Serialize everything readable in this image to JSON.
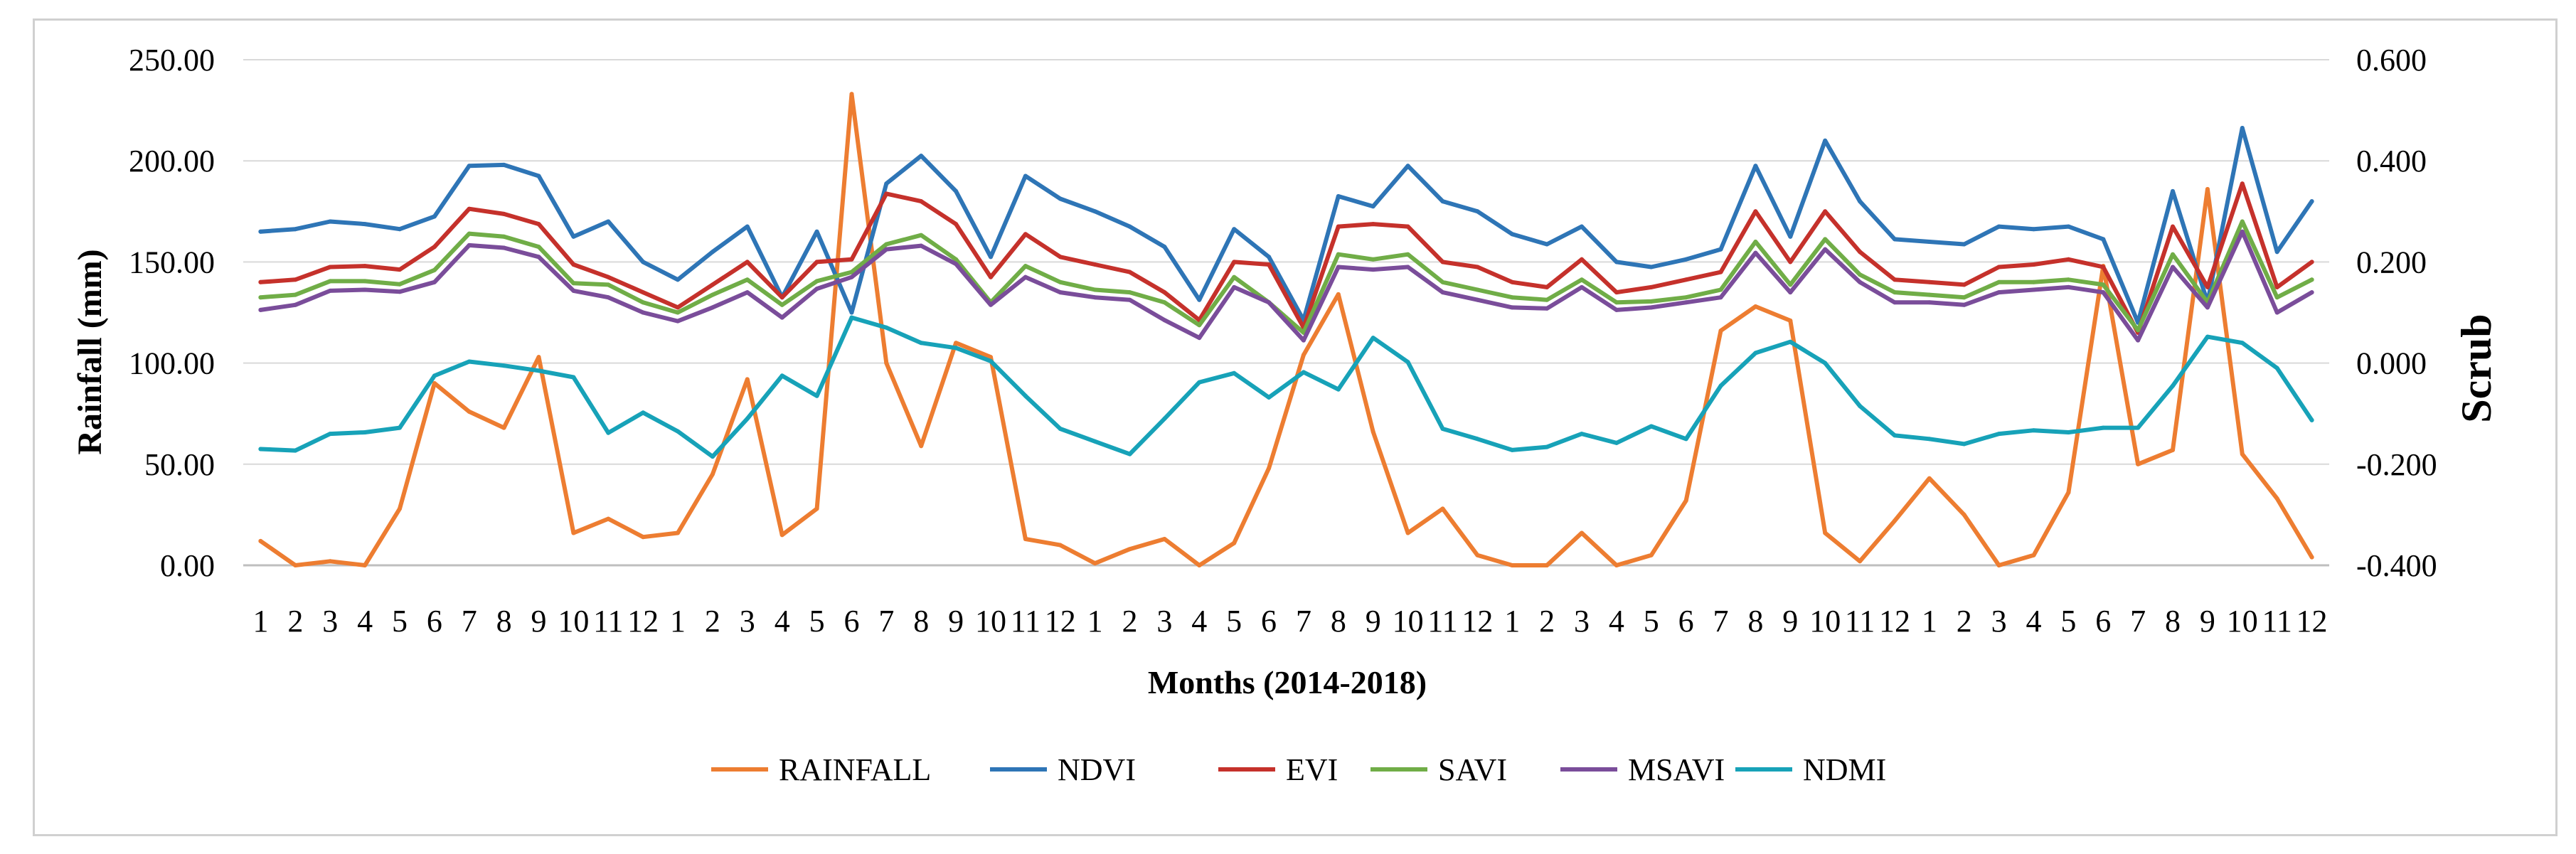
{
  "chart_data": {
    "type": "line",
    "xlabel": "Months (2014-2018)",
    "ylabel_left": "Rainfall (mm)",
    "ylabel_right": "Scrub",
    "ylim_left": [
      0,
      250
    ],
    "ylim_right": [
      -0.4,
      0.6
    ],
    "y_ticks_left": [
      "0.00",
      "50.00",
      "100.00",
      "150.00",
      "200.00",
      "250.00"
    ],
    "y_ticks_right": [
      "-0.400",
      "-0.200",
      "0.000",
      "0.200",
      "0.400",
      "0.600"
    ],
    "grid": true,
    "legend_position": "bottom",
    "categories": [
      "1",
      "2",
      "3",
      "4",
      "5",
      "6",
      "7",
      "8",
      "9",
      "10",
      "11",
      "12",
      "1",
      "2",
      "3",
      "4",
      "5",
      "6",
      "7",
      "8",
      "9",
      "10",
      "11",
      "12",
      "1",
      "2",
      "3",
      "4",
      "5",
      "6",
      "7",
      "8",
      "9",
      "10",
      "11",
      "12",
      "1",
      "2",
      "3",
      "4",
      "5",
      "6",
      "7",
      "8",
      "9",
      "10",
      "11",
      "12",
      "1",
      "2",
      "3",
      "4",
      "5",
      "6",
      "7",
      "8",
      "9",
      "10",
      "11",
      "12"
    ],
    "series": [
      {
        "name": "RAINFALL",
        "axis": "left",
        "color": "#ED7D31",
        "values": [
          12,
          0,
          2,
          0,
          28,
          90,
          76,
          68,
          103,
          16,
          23,
          14,
          16,
          45,
          92,
          15,
          28,
          233,
          100,
          59,
          110,
          103,
          13,
          10,
          1,
          8,
          13,
          0,
          11,
          48,
          104,
          134,
          66,
          16,
          28,
          5,
          0,
          0,
          16,
          0,
          5,
          32,
          116,
          128,
          121,
          16,
          2,
          22,
          43,
          25,
          0,
          5,
          36,
          148,
          50,
          57,
          186,
          55,
          33,
          4
        ]
      },
      {
        "name": "NDVI",
        "axis": "right",
        "color": "#2E75B6",
        "values": [
          0.26,
          0.265,
          0.28,
          0.275,
          0.265,
          0.29,
          0.39,
          0.392,
          0.37,
          0.25,
          0.28,
          0.2,
          0.165,
          0.22,
          0.27,
          0.13,
          0.26,
          0.1,
          0.355,
          0.41,
          0.34,
          0.21,
          0.37,
          0.325,
          0.3,
          0.27,
          0.23,
          0.125,
          0.265,
          0.21,
          0.085,
          0.33,
          0.31,
          0.39,
          0.32,
          0.3,
          0.255,
          0.235,
          0.27,
          0.2,
          0.19,
          0.205,
          0.225,
          0.39,
          0.25,
          0.44,
          0.32,
          0.245,
          0.24,
          0.235,
          0.27,
          0.265,
          0.27,
          0.245,
          0.08,
          0.34,
          0.12,
          0.465,
          0.22,
          0.32
        ]
      },
      {
        "name": "EVI",
        "axis": "right",
        "color": "#C5312B",
        "values": [
          0.16,
          0.165,
          0.19,
          0.192,
          0.185,
          0.23,
          0.305,
          0.295,
          0.275,
          0.195,
          0.17,
          0.14,
          0.11,
          0.155,
          0.2,
          0.13,
          0.2,
          0.205,
          0.335,
          0.32,
          0.275,
          0.17,
          0.255,
          0.21,
          0.195,
          0.18,
          0.14,
          0.085,
          0.2,
          0.195,
          0.07,
          0.27,
          0.275,
          0.27,
          0.2,
          0.19,
          0.16,
          0.15,
          0.205,
          0.14,
          0.15,
          0.165,
          0.18,
          0.3,
          0.2,
          0.3,
          0.22,
          0.165,
          0.16,
          0.155,
          0.19,
          0.195,
          0.205,
          0.19,
          0.06,
          0.27,
          0.15,
          0.355,
          0.15,
          0.2
        ]
      },
      {
        "name": "SAVI",
        "axis": "right",
        "color": "#70AD47",
        "values": [
          0.13,
          0.135,
          0.162,
          0.162,
          0.156,
          0.184,
          0.256,
          0.25,
          0.23,
          0.158,
          0.155,
          0.12,
          0.1,
          0.135,
          0.165,
          0.115,
          0.162,
          0.18,
          0.235,
          0.253,
          0.205,
          0.12,
          0.192,
          0.16,
          0.145,
          0.14,
          0.12,
          0.075,
          0.17,
          0.12,
          0.06,
          0.215,
          0.205,
          0.215,
          0.16,
          0.145,
          0.13,
          0.125,
          0.165,
          0.12,
          0.122,
          0.13,
          0.145,
          0.24,
          0.155,
          0.245,
          0.175,
          0.14,
          0.135,
          0.13,
          0.16,
          0.16,
          0.165,
          0.155,
          0.065,
          0.215,
          0.12,
          0.28,
          0.13,
          0.165
        ]
      },
      {
        "name": "MSAVI",
        "axis": "right",
        "color": "#7A4D9A",
        "values": [
          0.105,
          0.115,
          0.143,
          0.145,
          0.141,
          0.16,
          0.233,
          0.228,
          0.21,
          0.143,
          0.13,
          0.1,
          0.083,
          0.11,
          0.14,
          0.09,
          0.147,
          0.17,
          0.225,
          0.232,
          0.196,
          0.115,
          0.17,
          0.14,
          0.13,
          0.125,
          0.085,
          0.05,
          0.15,
          0.12,
          0.045,
          0.19,
          0.185,
          0.19,
          0.14,
          0.125,
          0.11,
          0.108,
          0.15,
          0.105,
          0.11,
          0.12,
          0.13,
          0.218,
          0.14,
          0.225,
          0.16,
          0.12,
          0.12,
          0.115,
          0.14,
          0.145,
          0.15,
          0.14,
          0.045,
          0.19,
          0.11,
          0.26,
          0.1,
          0.14
        ]
      },
      {
        "name": "NDMI",
        "axis": "right",
        "color": "#17A2B8",
        "values": [
          -0.17,
          -0.173,
          -0.14,
          -0.137,
          -0.128,
          -0.025,
          0.003,
          -0.005,
          -0.015,
          -0.028,
          -0.138,
          -0.098,
          -0.135,
          -0.185,
          -0.11,
          -0.025,
          -0.065,
          0.09,
          0.07,
          0.04,
          0.03,
          0.004,
          -0.065,
          -0.13,
          -0.155,
          -0.18,
          -0.11,
          -0.038,
          -0.02,
          -0.068,
          -0.018,
          -0.052,
          0.05,
          0.002,
          -0.13,
          -0.15,
          -0.172,
          -0.166,
          -0.14,
          -0.158,
          -0.125,
          -0.15,
          -0.045,
          0.02,
          0.042,
          0.0,
          -0.085,
          -0.143,
          -0.15,
          -0.16,
          -0.14,
          -0.133,
          -0.137,
          -0.128,
          -0.128,
          -0.045,
          0.052,
          0.04,
          -0.01,
          -0.113
        ]
      }
    ]
  }
}
